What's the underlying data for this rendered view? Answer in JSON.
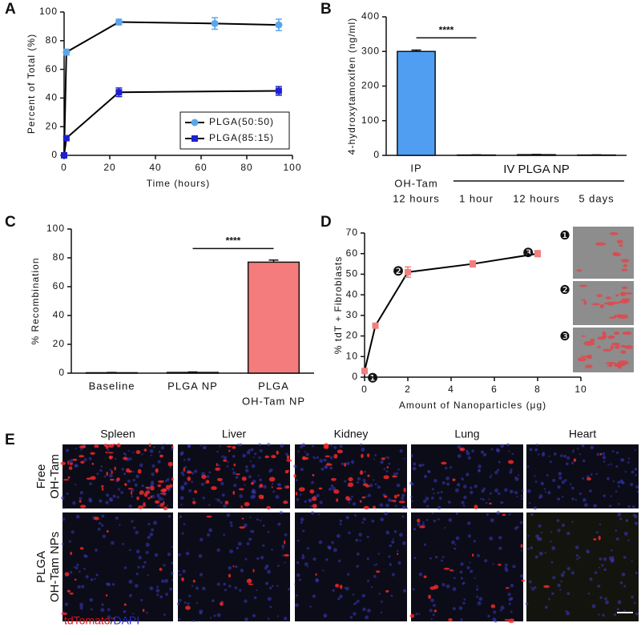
{
  "panel_labels": [
    "A",
    "B",
    "C",
    "D",
    "E"
  ],
  "chart_data": [
    {
      "type": "line",
      "xlabel": "Time (hours)",
      "ylabel": "Percent of Total (%)",
      "xlim": [
        0,
        100
      ],
      "xticks": [
        0,
        20,
        40,
        60,
        80,
        100
      ],
      "ylim": [
        0,
        100
      ],
      "yticks": [
        0,
        20,
        40,
        60,
        80,
        100
      ],
      "legend": "lower right",
      "line_color": "#000000",
      "series": [
        {
          "name": "PLGA(50:50)",
          "color": "#5aa6ee",
          "marker": "circle",
          "x": [
            0,
            1,
            24,
            66,
            94
          ],
          "values": [
            0,
            72,
            93,
            92,
            91
          ],
          "errors": [
            0,
            2,
            2,
            4,
            4
          ]
        },
        {
          "name": "PLGA(85:15)",
          "color": "#1f1fd0",
          "marker": "square",
          "x": [
            0,
            1,
            24,
            94
          ],
          "values": [
            0,
            12,
            44,
            45
          ],
          "errors": [
            0,
            1,
            3,
            3
          ]
        }
      ]
    },
    {
      "type": "bar",
      "ylabel": "4-hydroxytamoxifen (ng/ml)",
      "ylim": [
        0,
        400
      ],
      "yticks": [
        0,
        100,
        200,
        300,
        400
      ],
      "categories": [
        [
          "IP",
          "OH-Tam",
          "12 hours"
        ],
        [
          "1 hour"
        ],
        [
          "12 hours"
        ],
        [
          "5 days"
        ]
      ],
      "group_label": "IV PLGA NP",
      "values": [
        300,
        1,
        2,
        1
      ],
      "errors": [
        4,
        0.5,
        0.5,
        0.5
      ],
      "colors": [
        "#4f9ef2",
        "#4f9ef2",
        "#4f9ef2",
        "#4f9ef2"
      ],
      "significance": "****"
    },
    {
      "type": "bar",
      "ylabel": "% Recombination",
      "ylim": [
        0,
        100
      ],
      "yticks": [
        0,
        20,
        40,
        60,
        80,
        100
      ],
      "categories": [
        [
          "Baseline"
        ],
        [
          "PLGA NP"
        ],
        [
          "PLGA",
          "OH-Tam NP"
        ]
      ],
      "values": [
        0.3,
        0.5,
        77
      ],
      "errors": [
        0.2,
        0.3,
        1.5
      ],
      "colors": [
        "#ffffff",
        "#ffffff",
        "#f47c7c"
      ],
      "significance": "****"
    },
    {
      "type": "line",
      "xlabel": "Amount of Nanoparticles (μg)",
      "ylabel": "% tdT + Fibroblasts",
      "xlim": [
        0,
        10
      ],
      "xticks": [
        0,
        2,
        4,
        6,
        8,
        10
      ],
      "ylim": [
        0,
        70
      ],
      "yticks": [
        0,
        10,
        20,
        30,
        40,
        50,
        60,
        70
      ],
      "line_color": "#000000",
      "badges": [
        "❶",
        "❷",
        "❸"
      ],
      "series": [
        {
          "color": "#f08080",
          "marker": "square",
          "x": [
            0,
            0.5,
            2,
            5,
            8
          ],
          "values": [
            3,
            25,
            51,
            55,
            60
          ],
          "errors": [
            1,
            1,
            2.5,
            1.5,
            1.5
          ]
        }
      ]
    }
  ],
  "panel_e": {
    "columns": [
      "Spleen",
      "Liver",
      "Kidney",
      "Lung",
      "Heart"
    ],
    "rows": [
      [
        "Free",
        "OH-Tam"
      ],
      [
        "PLGA",
        "OH-Tam NPs"
      ]
    ],
    "stain_legend": {
      "text": [
        "tdTomato",
        "/",
        "DAPI"
      ],
      "colors": [
        "#d8121a",
        "#111111",
        "#2828d0"
      ]
    }
  }
}
